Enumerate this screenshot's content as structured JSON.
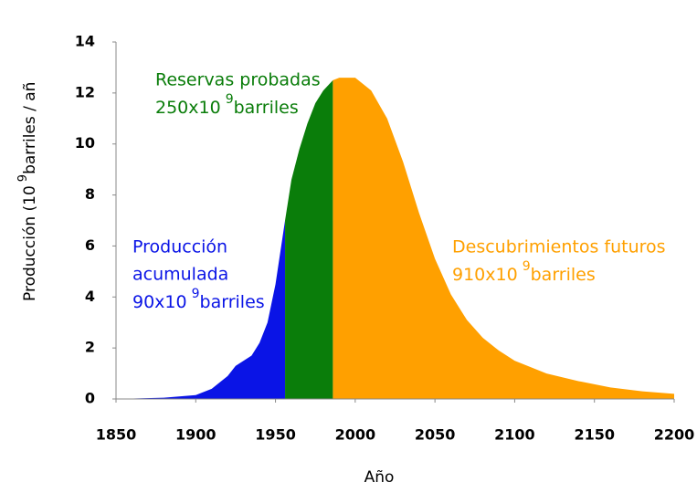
{
  "chart_data": {
    "type": "area",
    "x_label": "Año",
    "y_label": [
      "Producción (10",
      "9",
      "barriles / añ"
    ],
    "xlim": [
      1850,
      2200
    ],
    "ylim": [
      0,
      14
    ],
    "xticks": [
      1850,
      1900,
      1950,
      2000,
      2050,
      2100,
      2150,
      2200
    ],
    "yticks": [
      0,
      2,
      4,
      6,
      8,
      10,
      12,
      14
    ],
    "series": [
      {
        "name": "Producción acumulada",
        "color": "#0a14e6",
        "x": [
          1850,
          1880,
          1900,
          1910,
          1920,
          1925,
          1930,
          1935,
          1940,
          1945,
          1950,
          1956
        ],
        "values": [
          0,
          0.05,
          0.15,
          0.4,
          0.9,
          1.3,
          1.5,
          1.7,
          2.2,
          3,
          4.5,
          7
        ]
      },
      {
        "name": "Reservas probadas",
        "color": "#0a7d0a",
        "x": [
          1956,
          1960,
          1965,
          1970,
          1975,
          1980,
          1986
        ],
        "values": [
          7,
          8.6,
          9.8,
          10.8,
          11.6,
          12.1,
          12.5
        ]
      },
      {
        "name": "Descubrimientos futuros",
        "color": "#ffa000",
        "x": [
          1986,
          1990,
          2000,
          2010,
          2020,
          2030,
          2040,
          2050,
          2060,
          2070,
          2080,
          2090,
          2100,
          2120,
          2140,
          2160,
          2180,
          2200
        ],
        "values": [
          12.5,
          12.6,
          12.6,
          12.1,
          11.0,
          9.3,
          7.3,
          5.5,
          4.1,
          3.1,
          2.4,
          1.9,
          1.5,
          1.0,
          0.7,
          0.45,
          0.3,
          0.2
        ]
      }
    ],
    "annotations": [
      {
        "lines": [
          "Producción",
          "acumulada"
        ],
        "power_line": [
          "90x10",
          "9",
          "barriles"
        ],
        "color": "#0a14e6"
      },
      {
        "lines": [
          "Reservas probadas"
        ],
        "power_line": [
          "250x10",
          "9",
          "barriles"
        ],
        "color": "#0a7d0a"
      },
      {
        "lines": [
          "Descubrimientos futuros"
        ],
        "power_line": [
          "910x10",
          "9",
          "barriles"
        ],
        "color": "#ffa000"
      }
    ]
  }
}
